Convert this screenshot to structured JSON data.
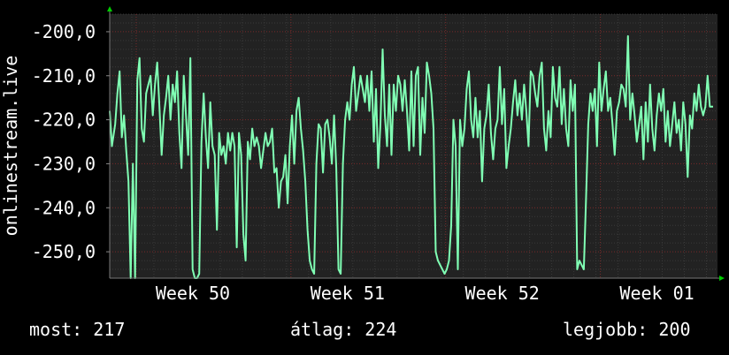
{
  "chart_data": {
    "type": "line",
    "ylabel": "onlinestream.live",
    "xlabel": "",
    "title": "",
    "ylim": [
      -256,
      -196
    ],
    "yticks": [
      {
        "value": -200,
        "label": "-200,0"
      },
      {
        "value": -210,
        "label": "-210,0"
      },
      {
        "value": -220,
        "label": "-220,0"
      },
      {
        "value": -230,
        "label": "-230,0"
      },
      {
        "value": -240,
        "label": "-240,0"
      },
      {
        "value": -250,
        "label": "-250,0"
      }
    ],
    "xlim": [
      0,
      55
    ],
    "xticks": [
      {
        "value": 4,
        "label": "Week 50"
      },
      {
        "value": 18,
        "label": "Week 51"
      },
      {
        "value": 32,
        "label": "Week 52"
      },
      {
        "value": 46,
        "label": "Week 01"
      }
    ],
    "grid": true,
    "colors": {
      "background": "#222222",
      "line": "#80ffb4",
      "grid_major": "#7a2a2a",
      "grid_minor": "#3a3a3a",
      "text": "#ffffff",
      "arrow": "#00cc00"
    },
    "series": [
      {
        "values": [
          [
            0.0,
            -218
          ],
          [
            0.2,
            -226
          ],
          [
            0.5,
            -221
          ],
          [
            0.7,
            -214
          ],
          [
            0.9,
            -209
          ],
          [
            1.1,
            -224
          ],
          [
            1.3,
            -219
          ],
          [
            1.5,
            -227
          ],
          [
            1.7,
            -234
          ],
          [
            1.9,
            -256
          ],
          [
            2.1,
            -230
          ],
          [
            2.3,
            -256
          ],
          [
            2.5,
            -211
          ],
          [
            2.7,
            -206
          ],
          [
            2.9,
            -222
          ],
          [
            3.1,
            -225
          ],
          [
            3.3,
            -214
          ],
          [
            3.5,
            -212
          ],
          [
            3.7,
            -210
          ],
          [
            3.9,
            -219
          ],
          [
            4.1,
            -212
          ],
          [
            4.3,
            -207
          ],
          [
            4.5,
            -217
          ],
          [
            4.7,
            -228
          ],
          [
            4.9,
            -219
          ],
          [
            5.1,
            -215
          ],
          [
            5.3,
            -210
          ],
          [
            5.5,
            -220
          ],
          [
            5.7,
            -212
          ],
          [
            5.9,
            -216
          ],
          [
            6.1,
            -209
          ],
          [
            6.3,
            -223
          ],
          [
            6.5,
            -231
          ],
          [
            6.7,
            -210
          ],
          [
            6.9,
            -219
          ],
          [
            7.1,
            -228
          ],
          [
            7.3,
            -206
          ],
          [
            7.5,
            -254
          ],
          [
            7.7,
            -256
          ],
          [
            7.9,
            -256
          ],
          [
            8.1,
            -255
          ],
          [
            8.3,
            -225
          ],
          [
            8.5,
            -214
          ],
          [
            8.7,
            -224
          ],
          [
            8.9,
            -231
          ],
          [
            9.1,
            -216
          ],
          [
            9.3,
            -226
          ],
          [
            9.5,
            -228
          ],
          [
            9.7,
            -245
          ],
          [
            9.9,
            -223
          ],
          [
            10.1,
            -228
          ],
          [
            10.3,
            -226
          ],
          [
            10.5,
            -230
          ],
          [
            10.7,
            -223
          ],
          [
            10.9,
            -227
          ],
          [
            11.1,
            -223
          ],
          [
            11.3,
            -226
          ],
          [
            11.5,
            -249
          ],
          [
            11.7,
            -223
          ],
          [
            11.9,
            -228
          ],
          [
            12.1,
            -246
          ],
          [
            12.3,
            -252
          ],
          [
            12.5,
            -225
          ],
          [
            12.7,
            -229
          ],
          [
            12.9,
            -222
          ],
          [
            13.1,
            -226
          ],
          [
            13.3,
            -224
          ],
          [
            13.5,
            -226
          ],
          [
            13.7,
            -231
          ],
          [
            13.9,
            -227
          ],
          [
            14.1,
            -223
          ],
          [
            14.3,
            -226
          ],
          [
            14.5,
            -225
          ],
          [
            14.7,
            -222
          ],
          [
            14.9,
            -232
          ],
          [
            15.1,
            -231
          ],
          [
            15.3,
            -240
          ],
          [
            15.5,
            -234
          ],
          [
            15.7,
            -233
          ],
          [
            15.9,
            -228
          ],
          [
            16.1,
            -239
          ],
          [
            16.3,
            -226
          ],
          [
            16.5,
            -219
          ],
          [
            16.7,
            -230
          ],
          [
            16.9,
            -218
          ],
          [
            17.1,
            -215
          ],
          [
            17.3,
            -222
          ],
          [
            17.5,
            -227
          ],
          [
            17.7,
            -234
          ],
          [
            17.9,
            -245
          ],
          [
            18.1,
            -252
          ],
          [
            18.3,
            -254
          ],
          [
            18.5,
            -255
          ],
          [
            18.7,
            -230
          ],
          [
            18.9,
            -221
          ],
          [
            19.1,
            -222
          ],
          [
            19.3,
            -232
          ],
          [
            19.5,
            -221
          ],
          [
            19.7,
            -220
          ],
          [
            19.9,
            -224
          ],
          [
            20.1,
            -230
          ],
          [
            20.3,
            -219
          ],
          [
            20.5,
            -231
          ],
          [
            20.7,
            -254
          ],
          [
            20.9,
            -255
          ],
          [
            21.1,
            -230
          ],
          [
            21.3,
            -220
          ],
          [
            21.5,
            -216
          ],
          [
            21.7,
            -220
          ],
          [
            21.9,
            -212
          ],
          [
            22.1,
            -208
          ],
          [
            22.3,
            -218
          ],
          [
            22.5,
            -214
          ],
          [
            22.7,
            -210
          ],
          [
            22.9,
            -213
          ],
          [
            23.1,
            -216
          ],
          [
            23.3,
            -210
          ],
          [
            23.5,
            -218
          ],
          [
            23.7,
            -209
          ],
          [
            23.9,
            -225
          ],
          [
            24.1,
            -213
          ],
          [
            24.3,
            -231
          ],
          [
            24.5,
            -221
          ],
          [
            24.7,
            -204
          ],
          [
            24.9,
            -219
          ],
          [
            25.1,
            -226
          ],
          [
            25.3,
            -212
          ],
          [
            25.5,
            -228
          ],
          [
            25.7,
            -212
          ],
          [
            25.9,
            -218
          ],
          [
            26.1,
            -210
          ],
          [
            26.3,
            -212
          ],
          [
            26.5,
            -218
          ],
          [
            26.7,
            -211
          ],
          [
            26.9,
            -218
          ],
          [
            27.1,
            -227
          ],
          [
            27.3,
            -209
          ],
          [
            27.5,
            -226
          ],
          [
            27.7,
            -210
          ],
          [
            27.9,
            -208
          ],
          [
            28.1,
            -228
          ],
          [
            28.3,
            -215
          ],
          [
            28.5,
            -223
          ],
          [
            28.7,
            -207
          ],
          [
            28.9,
            -210
          ],
          [
            29.1,
            -214
          ],
          [
            29.3,
            -222
          ],
          [
            29.5,
            -250
          ],
          [
            29.7,
            -252
          ],
          [
            29.9,
            -253
          ],
          [
            30.1,
            -254
          ],
          [
            30.3,
            -255
          ],
          [
            30.5,
            -254
          ],
          [
            30.7,
            -252
          ],
          [
            30.9,
            -244
          ],
          [
            31.1,
            -220
          ],
          [
            31.3,
            -226
          ],
          [
            31.5,
            -254
          ],
          [
            31.7,
            -220
          ],
          [
            31.9,
            -226
          ],
          [
            32.1,
            -222
          ],
          [
            32.3,
            -213
          ],
          [
            32.5,
            -209
          ],
          [
            32.7,
            -220
          ],
          [
            32.9,
            -224
          ],
          [
            33.1,
            -215
          ],
          [
            33.3,
            -224
          ],
          [
            33.5,
            -218
          ],
          [
            33.7,
            -234
          ],
          [
            33.9,
            -222
          ],
          [
            34.1,
            -219
          ],
          [
            34.3,
            -212
          ],
          [
            34.5,
            -223
          ],
          [
            34.7,
            -229
          ],
          [
            34.9,
            -222
          ],
          [
            35.1,
            -220
          ],
          [
            35.3,
            -208
          ],
          [
            35.5,
            -221
          ],
          [
            35.7,
            -213
          ],
          [
            35.9,
            -231
          ],
          [
            36.1,
            -226
          ],
          [
            36.3,
            -222
          ],
          [
            36.5,
            -216
          ],
          [
            36.7,
            -211
          ],
          [
            36.9,
            -219
          ],
          [
            37.1,
            -214
          ],
          [
            37.3,
            -220
          ],
          [
            37.5,
            -212
          ],
          [
            37.7,
            -218
          ],
          [
            37.9,
            -226
          ],
          [
            38.1,
            -209
          ],
          [
            38.3,
            -210
          ],
          [
            38.5,
            -214
          ],
          [
            38.7,
            -217
          ],
          [
            38.9,
            -210
          ],
          [
            39.1,
            -207
          ],
          [
            39.3,
            -222
          ],
          [
            39.5,
            -227
          ],
          [
            39.7,
            -218
          ],
          [
            39.9,
            -224
          ],
          [
            40.1,
            -208
          ],
          [
            40.3,
            -215
          ],
          [
            40.5,
            -217
          ],
          [
            40.7,
            -208
          ],
          [
            40.9,
            -221
          ],
          [
            41.1,
            -213
          ],
          [
            41.3,
            -222
          ],
          [
            41.5,
            -226
          ],
          [
            41.7,
            -211
          ],
          [
            41.9,
            -218
          ],
          [
            42.1,
            -212
          ],
          [
            42.3,
            -254
          ],
          [
            42.5,
            -252
          ],
          [
            42.7,
            -253
          ],
          [
            42.9,
            -254
          ],
          [
            43.1,
            -238
          ],
          [
            43.3,
            -221
          ],
          [
            43.5,
            -214
          ],
          [
            43.7,
            -218
          ],
          [
            43.9,
            -213
          ],
          [
            44.1,
            -226
          ],
          [
            44.3,
            -207
          ],
          [
            44.5,
            -218
          ],
          [
            44.7,
            -213
          ],
          [
            44.9,
            -209
          ],
          [
            45.1,
            -218
          ],
          [
            45.3,
            -215
          ],
          [
            45.5,
            -221
          ],
          [
            45.7,
            -228
          ],
          [
            45.9,
            -218
          ],
          [
            46.1,
            -216
          ],
          [
            46.3,
            -212
          ],
          [
            46.5,
            -213
          ],
          [
            46.7,
            -217
          ],
          [
            46.9,
            -201
          ],
          [
            47.1,
            -220
          ],
          [
            47.3,
            -214
          ],
          [
            47.5,
            -219
          ],
          [
            47.7,
            -225
          ],
          [
            47.9,
            -221
          ],
          [
            48.1,
            -217
          ],
          [
            48.3,
            -229
          ],
          [
            48.5,
            -216
          ],
          [
            48.7,
            -225
          ],
          [
            48.9,
            -212
          ],
          [
            49.1,
            -222
          ],
          [
            49.3,
            -227
          ],
          [
            49.5,
            -219
          ],
          [
            49.7,
            -214
          ],
          [
            49.9,
            -218
          ],
          [
            50.1,
            -213
          ],
          [
            50.3,
            -225
          ],
          [
            50.5,
            -218
          ],
          [
            50.7,
            -226
          ],
          [
            50.9,
            -221
          ],
          [
            51.1,
            -216
          ],
          [
            51.3,
            -223
          ],
          [
            51.5,
            -220
          ],
          [
            51.7,
            -227
          ],
          [
            51.9,
            -216
          ],
          [
            52.1,
            -221
          ],
          [
            52.3,
            -233
          ],
          [
            52.5,
            -219
          ],
          [
            52.7,
            -222
          ],
          [
            52.9,
            -214
          ],
          [
            53.1,
            -218
          ],
          [
            53.3,
            -212
          ],
          [
            53.5,
            -217
          ],
          [
            53.7,
            -219
          ],
          [
            53.9,
            -217
          ],
          [
            54.1,
            -210
          ],
          [
            54.3,
            -217
          ],
          [
            54.6,
            -217
          ]
        ]
      }
    ]
  },
  "stats": {
    "current": "most: 217",
    "average": "átlag: 224",
    "best": "legjobb: 200"
  }
}
